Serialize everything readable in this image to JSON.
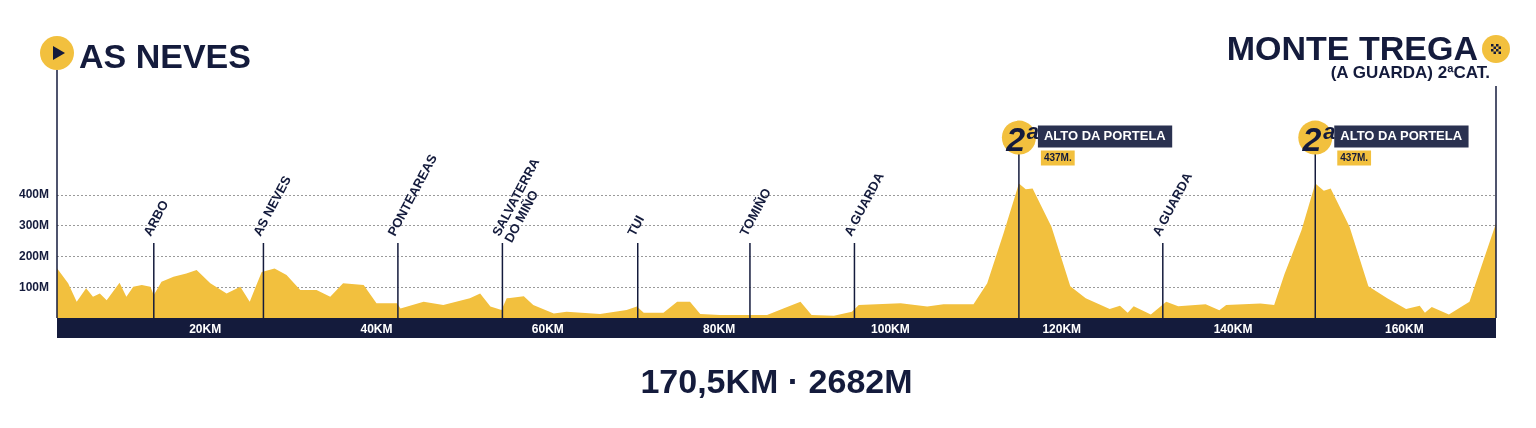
{
  "chart_data": {
    "type": "area",
    "x": [
      2.7,
      4.0,
      5.0,
      6.1,
      6.9,
      7.7,
      8.5,
      10.0,
      10.8,
      11.6,
      12.6,
      13.6,
      14.0,
      14.9,
      16.3,
      17.8,
      19.0,
      20.6,
      22.5,
      24.1,
      25.2,
      26.6,
      28.1,
      29.5,
      31.1,
      33.0,
      34.6,
      36.1,
      38.5,
      40.0,
      42.4,
      42.8,
      45.5,
      47.8,
      50.9,
      52.1,
      53.3,
      54.6,
      55.2,
      57.2,
      58.3,
      60.7,
      62.2,
      66.1,
      69.2,
      70.4,
      71.2,
      73.5,
      75.1,
      76.6,
      77.8,
      80.1,
      83.3,
      85.6,
      87.5,
      89.5,
      90.8,
      93.4,
      95.5,
      96.3,
      101.2,
      104.3,
      106.2,
      109.7,
      111.3,
      113.2,
      115.0,
      115.8,
      116.6,
      118.8,
      121.0,
      122.8,
      125.6,
      126.8,
      127.7,
      128.4,
      130.4,
      132.2,
      133.6,
      136.8,
      138.4,
      139.2,
      143.2,
      144.8,
      146.0,
      148.0,
      149.6,
      150.6,
      151.4,
      153.6,
      155.8,
      158.0,
      160.2,
      161.8,
      162.4,
      163.2,
      165.2,
      167.6,
      170.7
    ],
    "values": [
      162,
      113,
      53,
      97,
      69,
      80,
      58,
      115,
      69,
      102,
      107,
      102,
      75,
      118,
      134,
      145,
      156,
      113,
      80,
      102,
      53,
      150,
      161,
      140,
      91,
      91,
      69,
      113,
      107,
      48,
      48,
      31,
      53,
      42,
      64,
      80,
      37,
      26,
      64,
      71,
      42,
      15,
      20,
      13,
      26,
      37,
      17,
      17,
      53,
      53,
      13,
      10,
      10,
      10,
      31,
      53,
      10,
      7,
      20,
      42,
      48,
      37,
      45,
      45,
      113,
      275,
      437,
      419,
      421,
      297,
      103,
      64,
      29,
      40,
      17,
      38,
      11,
      53,
      38,
      45,
      25,
      42,
      47,
      42,
      142,
      286,
      437,
      414,
      421,
      297,
      103,
      64,
      29,
      40,
      17,
      36,
      11,
      53,
      308
    ],
    "color": "#f2c03e",
    "xlim": [
      2.7,
      170.7
    ],
    "xticks": [
      {
        "value": 20,
        "label": "20KM"
      },
      {
        "value": 40,
        "label": "40KM"
      },
      {
        "value": 60,
        "label": "60KM"
      },
      {
        "value": 80,
        "label": "80KM"
      },
      {
        "value": 100,
        "label": "100KM"
      },
      {
        "value": 120,
        "label": "120KM"
      },
      {
        "value": 140,
        "label": "140KM"
      },
      {
        "value": 160,
        "label": "160KM"
      }
    ],
    "ylim": [
      0,
      800
    ],
    "yticks": [
      {
        "value": 100,
        "label": "100M"
      },
      {
        "value": 200,
        "label": "200M"
      },
      {
        "value": 300,
        "label": "300M"
      },
      {
        "value": 400,
        "label": "400M"
      }
    ],
    "grid": "y",
    "ref_lines": [
      {
        "axis": "x",
        "value": 2.7,
        "label": "AS NEVES"
      },
      {
        "axis": "x",
        "value": 14.0,
        "label": "ARBO"
      },
      {
        "axis": "x",
        "value": 26.8,
        "label": "AS NEVES"
      },
      {
        "axis": "x",
        "value": 42.5,
        "label": "PONTEAREAS"
      },
      {
        "axis": "x",
        "value": 54.7,
        "label": "SALVATERRA DO MIÑO"
      },
      {
        "axis": "x",
        "value": 70.5,
        "label": "TUI"
      },
      {
        "axis": "x",
        "value": 83.6,
        "label": "TOMIÑO"
      },
      {
        "axis": "x",
        "value": 95.8,
        "label": "A GUARDA"
      },
      {
        "axis": "x",
        "value": 131.8,
        "label": "A GUARDA"
      },
      {
        "axis": "x",
        "value": 170.7,
        "label": "MONTE TREGA"
      }
    ],
    "annotations": [
      {
        "text": "2ª",
        "x": 115.0,
        "y": 437
      },
      "ALTO DA PORTELA",
      "437M.",
      {
        "text": "2ª",
        "x": 149.6,
        "y": 437
      },
      "ALTO DA PORTELA",
      "437M.",
      "(A GUARDA) 2ªCAT.",
      "170,5KM · 2682M"
    ]
  }
}
